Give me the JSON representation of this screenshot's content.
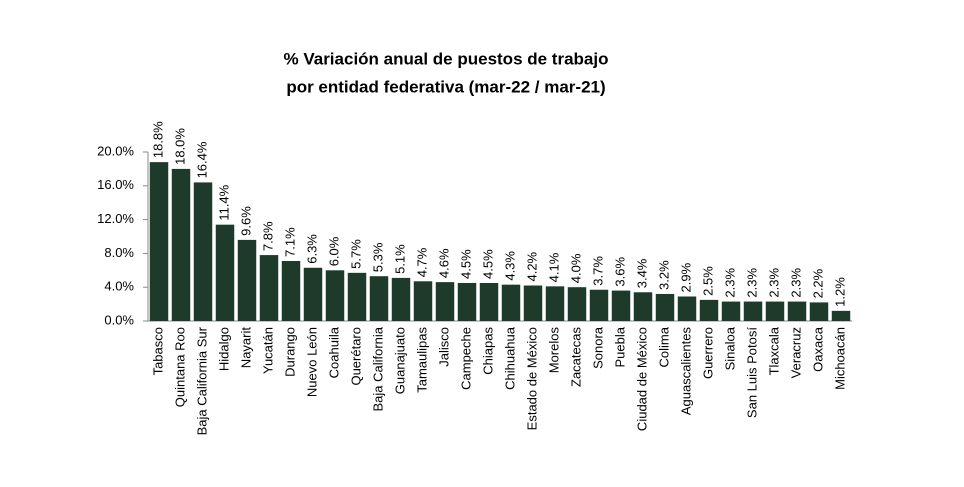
{
  "chart_data": {
    "type": "bar",
    "title": [
      "% Variación anual de puestos de trabajo",
      "por entidad federativa (mar-22 / mar-21)"
    ],
    "categories": [
      "Tabasco",
      "Quintana Roo",
      "Baja California Sur",
      "Hidalgo",
      "Nayarit",
      "Yucatán",
      "Durango",
      "Nuevo León",
      "Coahuila",
      "Querétaro",
      "Baja California",
      "Guanajuato",
      "Tamaulipas",
      "Jalisco",
      "Campeche",
      "Chiapas",
      "Chihuahua",
      "Estado de México",
      "Morelos",
      "Zacatecas",
      "Sonora",
      "Puebla",
      "Ciudad de México",
      "Colima",
      "Aguascalientes",
      "Guerrero",
      "Sinaloa",
      "San Luis Potosí",
      "Tlaxcala",
      "Veracruz",
      "Oaxaca",
      "Michoacán"
    ],
    "values": [
      18.8,
      18.0,
      16.4,
      11.4,
      9.6,
      7.8,
      7.1,
      6.3,
      6.0,
      5.7,
      5.3,
      5.1,
      4.7,
      4.6,
      4.5,
      4.5,
      4.3,
      4.2,
      4.1,
      4.0,
      3.7,
      3.6,
      3.4,
      3.2,
      2.9,
      2.5,
      2.3,
      2.3,
      2.3,
      2.3,
      2.2,
      1.2
    ],
    "value_labels": [
      "18.8%",
      "18.0%",
      "16.4%",
      "11.4%",
      "9.6%",
      "7.8%",
      "7.1%",
      "6.3%",
      "6.0%",
      "5.7%",
      "5.3%",
      "5.1%",
      "4.7%",
      "4.6%",
      "4.5%",
      "4.5%",
      "4.3%",
      "4.2%",
      "4.1%",
      "4.0%",
      "3.7%",
      "3.6%",
      "3.4%",
      "3.2%",
      "2.9%",
      "2.5%",
      "2.3%",
      "2.3%",
      "2.3%",
      "2.3%",
      "2.2%",
      "1.2%"
    ],
    "color": "#1e3a2b",
    "ylim": [
      0,
      20
    ],
    "yticks": [
      {
        "value": 0,
        "label": "0.0%"
      },
      {
        "value": 4,
        "label": "4.0%"
      },
      {
        "value": 8,
        "label": "8.0%"
      },
      {
        "value": 12,
        "label": "12.0%"
      },
      {
        "value": 16,
        "label": "16.0%"
      },
      {
        "value": 20,
        "label": "20.0%"
      }
    ],
    "grid": false
  }
}
